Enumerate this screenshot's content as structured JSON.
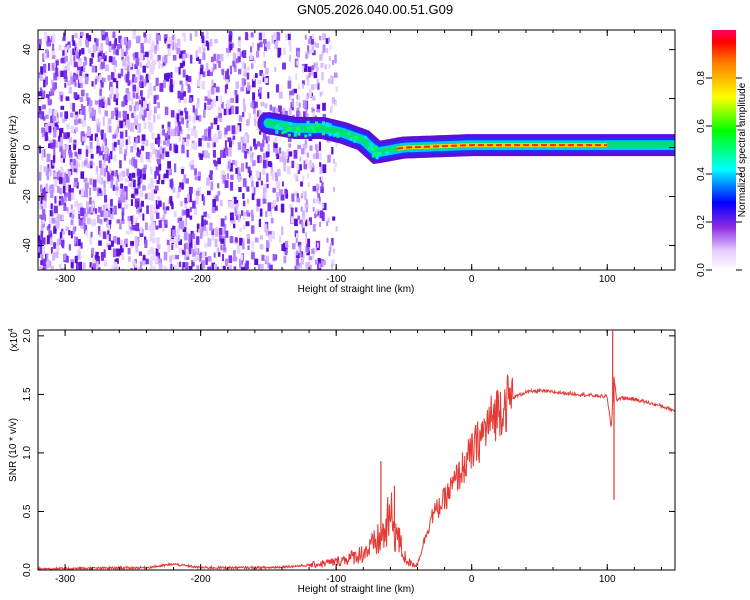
{
  "figure": {
    "title": "GN05.2026.040.00.51.G09"
  },
  "chart_data": [
    {
      "type": "heatmap",
      "title": "GN05.2026.040.00.51.G09",
      "xlabel": "Height of straight line (km)",
      "ylabel": "Frequency (Hz)",
      "xlim": [
        -320,
        150
      ],
      "ylim": [
        -50,
        48
      ],
      "xticks": [
        -300,
        -200,
        -100,
        0,
        100
      ],
      "xtick_labels": [
        "-300",
        "-200",
        "-100",
        "0",
        "100"
      ],
      "yticks": [
        -40,
        -20,
        0,
        20,
        40
      ],
      "ytick_labels": [
        "-40",
        "-20",
        "0",
        "20",
        "40"
      ],
      "colorbar": {
        "label": "Normalized spectral amplitude",
        "range": [
          0,
          1
        ],
        "ticks": [
          0.0,
          0.2,
          0.4,
          0.6,
          0.8
        ],
        "tick_labels": [
          "0.0",
          "0.2",
          "0.4",
          "0.6",
          "0.8"
        ]
      },
      "ridge": {
        "description_points_x": [
          -150,
          -130,
          -110,
          -95,
          -80,
          -70,
          -60,
          -50,
          0,
          100,
          150
        ],
        "frequency_hz": [
          10,
          8,
          8,
          6,
          3,
          -2,
          -1,
          0,
          1,
          1,
          1
        ]
      }
    },
    {
      "type": "line",
      "xlabel": "Height of straight line (km)",
      "ylabel": "SNR (10 * v/v)",
      "y_multiplier": "(x10",
      "y_multiplier_exp": "4",
      "xlim": [
        -320,
        150
      ],
      "ylim": [
        0,
        2.05
      ],
      "xticks": [
        -300,
        -200,
        -100,
        0,
        100
      ],
      "xtick_labels": [
        "-300",
        "-200",
        "-100",
        "0",
        "100"
      ],
      "yticks": [
        0,
        0.5,
        1.0,
        1.5,
        2.0
      ],
      "ytick_labels": [
        "0.0",
        "0.5",
        "1.0",
        "1.5",
        "2.0"
      ],
      "color": "#e53935",
      "series": [
        {
          "name": "SNR",
          "x": [
            -320,
            -240,
            -220,
            -200,
            -150,
            -120,
            -100,
            -85,
            -75,
            -65,
            -60,
            -55,
            -50,
            -45,
            -40,
            -35,
            -30,
            -20,
            -10,
            0,
            10,
            20,
            30,
            40,
            50,
            60,
            70,
            80,
            90,
            100,
            103,
            105,
            107,
            110,
            120,
            130,
            140,
            150
          ],
          "y": [
            0.01,
            0.02,
            0.05,
            0.02,
            0.02,
            0.04,
            0.07,
            0.12,
            0.18,
            0.3,
            0.45,
            0.3,
            0.12,
            0.05,
            0.05,
            0.25,
            0.45,
            0.6,
            0.8,
            1.0,
            1.2,
            1.38,
            1.47,
            1.52,
            1.53,
            1.52,
            1.51,
            1.5,
            1.49,
            1.48,
            1.2,
            1.65,
            1.45,
            1.47,
            1.46,
            1.43,
            1.4,
            1.36
          ]
        }
      ],
      "spikes": [
        {
          "x": -67,
          "y": 0.93
        },
        {
          "x": -57,
          "y": 0.72
        },
        {
          "x": 104,
          "y": 2.05
        },
        {
          "x": 105,
          "y": 0.6
        }
      ]
    }
  ]
}
